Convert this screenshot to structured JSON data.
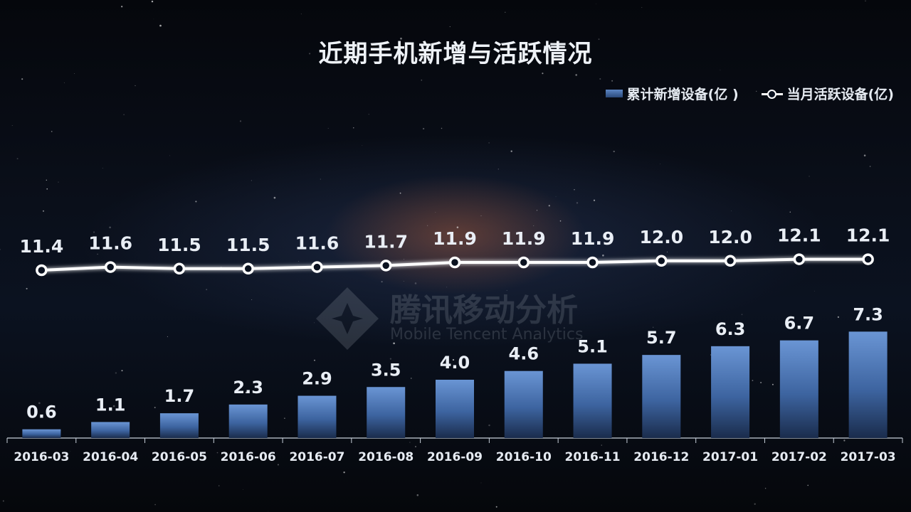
{
  "title": "近期手机新增与活跃情况",
  "legend": {
    "bar_label": "累计新增设备(亿 )",
    "line_label": "当月活跃设备(亿)"
  },
  "watermark": {
    "cn": "腾讯移动分析",
    "en": "Mobile Tencent Analytics"
  },
  "colors": {
    "bar": "#4f78b6",
    "line": "#ffffff",
    "text": "#e6ebf2"
  },
  "chart_data": {
    "type": "bar",
    "title": "近期手机新增与活跃情况",
    "categories": [
      "2016-03",
      "2016-04",
      "2016-05",
      "2016-06",
      "2016-07",
      "2016-08",
      "2016-09",
      "2016-10",
      "2016-11",
      "2016-12",
      "2017-01",
      "2017-02",
      "2017-03"
    ],
    "series": [
      {
        "name": "累计新增设备(亿 )",
        "type": "bar",
        "values": [
          0.6,
          1.1,
          1.7,
          2.3,
          2.9,
          3.5,
          4.0,
          4.6,
          5.1,
          5.7,
          6.3,
          6.7,
          7.3
        ]
      },
      {
        "name": "当月活跃设备(亿)",
        "type": "line",
        "values": [
          11.4,
          11.6,
          11.5,
          11.5,
          11.6,
          11.7,
          11.9,
          11.9,
          11.9,
          12.0,
          12.0,
          12.1,
          12.1
        ]
      }
    ],
    "legend_position": "top-right",
    "grid": false
  }
}
